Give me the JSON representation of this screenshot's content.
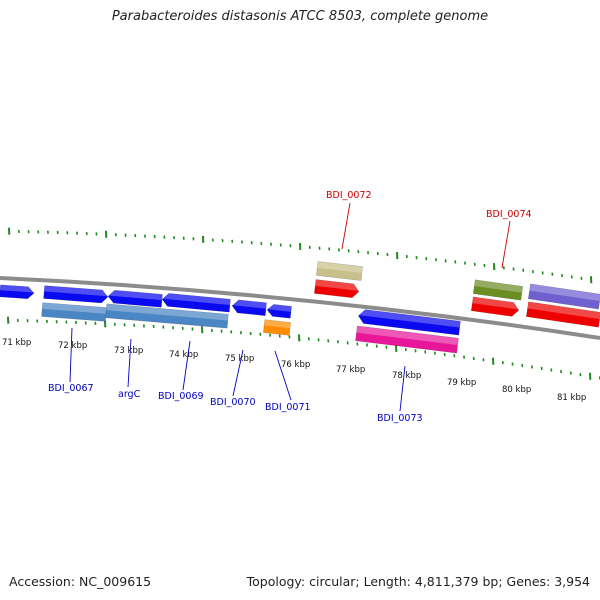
{
  "title": "Parabacteroides distasonis ATCC 8503, complete genome",
  "footer": {
    "accession": "Accession: NC_009615",
    "summary": "Topology: circular; Length: 4,811,379 bp; Genes: 3,954"
  },
  "colors": {
    "tick": "#1f8a1f",
    "backbone": "#8c8c8c",
    "label_forward": "#cc0000",
    "label_reverse": "#0000bb",
    "blue": "#0a0af0",
    "steelblue": "#4a86c4",
    "orange": "#ff8c00",
    "tan": "#c8c08a",
    "red": "#ee0000",
    "magenta": "#e8179a",
    "olive": "#6b8e23",
    "purple": "#6f5fd0"
  },
  "scale_labels": [
    "71 kbp",
    "72 kbp",
    "73 kbp",
    "74 kbp",
    "75 kbp",
    "76 kbp",
    "77 kbp",
    "78 kbp",
    "79 kbp",
    "80 kbp",
    "81 kbp"
  ],
  "gene_labels_top": [
    {
      "name": "BDI_0072",
      "color": "label_forward"
    },
    {
      "name": "BDI_0074",
      "color": "label_forward"
    }
  ],
  "gene_labels_bottom": [
    {
      "name": "BDI_0067",
      "color": "label_reverse"
    },
    {
      "name": "argC",
      "color": "label_reverse"
    },
    {
      "name": "BDI_0069",
      "color": "label_reverse"
    },
    {
      "name": "BDI_0070",
      "color": "label_reverse"
    },
    {
      "name": "BDI_0071",
      "color": "label_reverse"
    },
    {
      "name": "BDI_0073",
      "color": "label_reverse"
    }
  ]
}
